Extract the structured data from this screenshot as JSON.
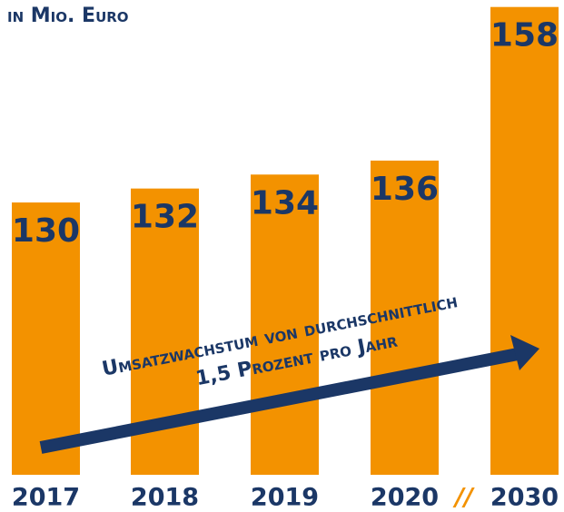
{
  "chart_data": {
    "type": "bar",
    "title": "in Mio. Euro",
    "categories": [
      "2017",
      "2018",
      "2019",
      "2020",
      "2030"
    ],
    "values": [
      130,
      132,
      134,
      136,
      158
    ],
    "color": "#f39200",
    "ylim": [
      91,
      159
    ],
    "axis_break": "//",
    "annotations": [
      "Umsatzwachstum von durchschnittlich",
      "1,5 Prozent pro Jahr"
    ]
  }
}
